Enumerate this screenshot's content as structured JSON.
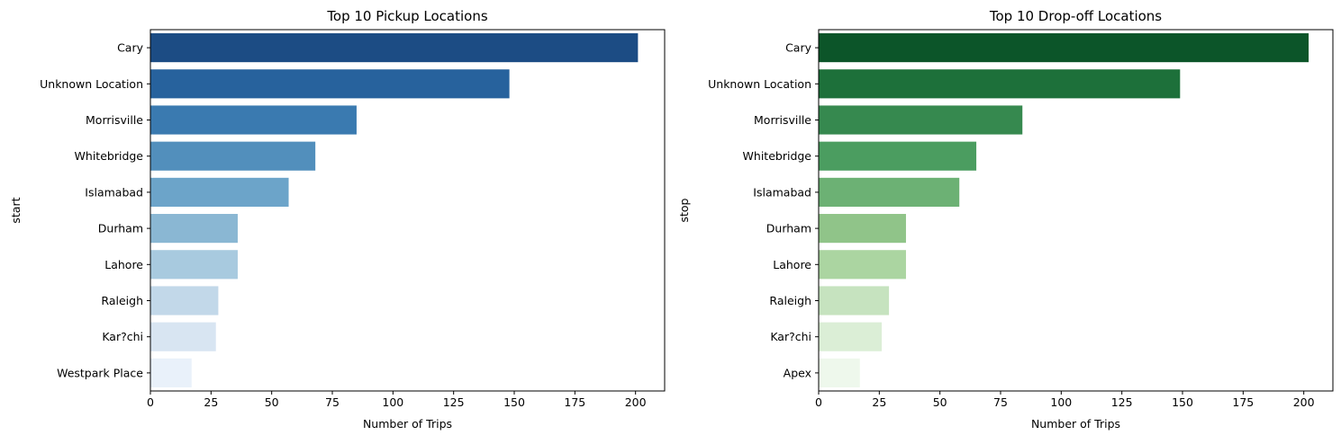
{
  "chart_data": [
    {
      "type": "bar",
      "orientation": "horizontal",
      "title": "Top 10 Pickup Locations",
      "xlabel": "Number of Trips",
      "ylabel": "start",
      "categories": [
        "Cary",
        "Unknown Location",
        "Morrisville",
        "Whitebridge",
        "Islamabad",
        "Durham",
        "Lahore",
        "Raleigh",
        "Kar?chi",
        "Westpark Place"
      ],
      "values": [
        201,
        148,
        85,
        68,
        57,
        36,
        36,
        28,
        27,
        17
      ],
      "xlim": [
        0,
        212
      ],
      "xticks": [
        0,
        25,
        50,
        75,
        100,
        125,
        150,
        175,
        200
      ],
      "colors": [
        "#1c4c84",
        "#27629d",
        "#3a7ab0",
        "#528fbc",
        "#6ca4c9",
        "#8ab7d3",
        "#a8cadf",
        "#c2d8e9",
        "#d8e5f2",
        "#e9f1fa"
      ],
      "grid": false
    },
    {
      "type": "bar",
      "orientation": "horizontal",
      "title": "Top 10 Drop-off Locations",
      "xlabel": "Number of Trips",
      "ylabel": "stop",
      "categories": [
        "Cary",
        "Unknown Location",
        "Morrisville",
        "Whitebridge",
        "Islamabad",
        "Durham",
        "Lahore",
        "Raleigh",
        "Kar?chi",
        "Apex"
      ],
      "values": [
        202,
        149,
        84,
        65,
        58,
        36,
        36,
        29,
        26,
        17
      ],
      "xlim": [
        0,
        212
      ],
      "xticks": [
        0,
        25,
        50,
        75,
        100,
        125,
        150,
        175,
        200
      ],
      "colors": [
        "#0c5529",
        "#1d703a",
        "#36894f",
        "#4b9d60",
        "#6cb174",
        "#90c489",
        "#abd5a1",
        "#c6e3bf",
        "#dbeed6",
        "#eef8ec"
      ],
      "grid": false
    }
  ]
}
